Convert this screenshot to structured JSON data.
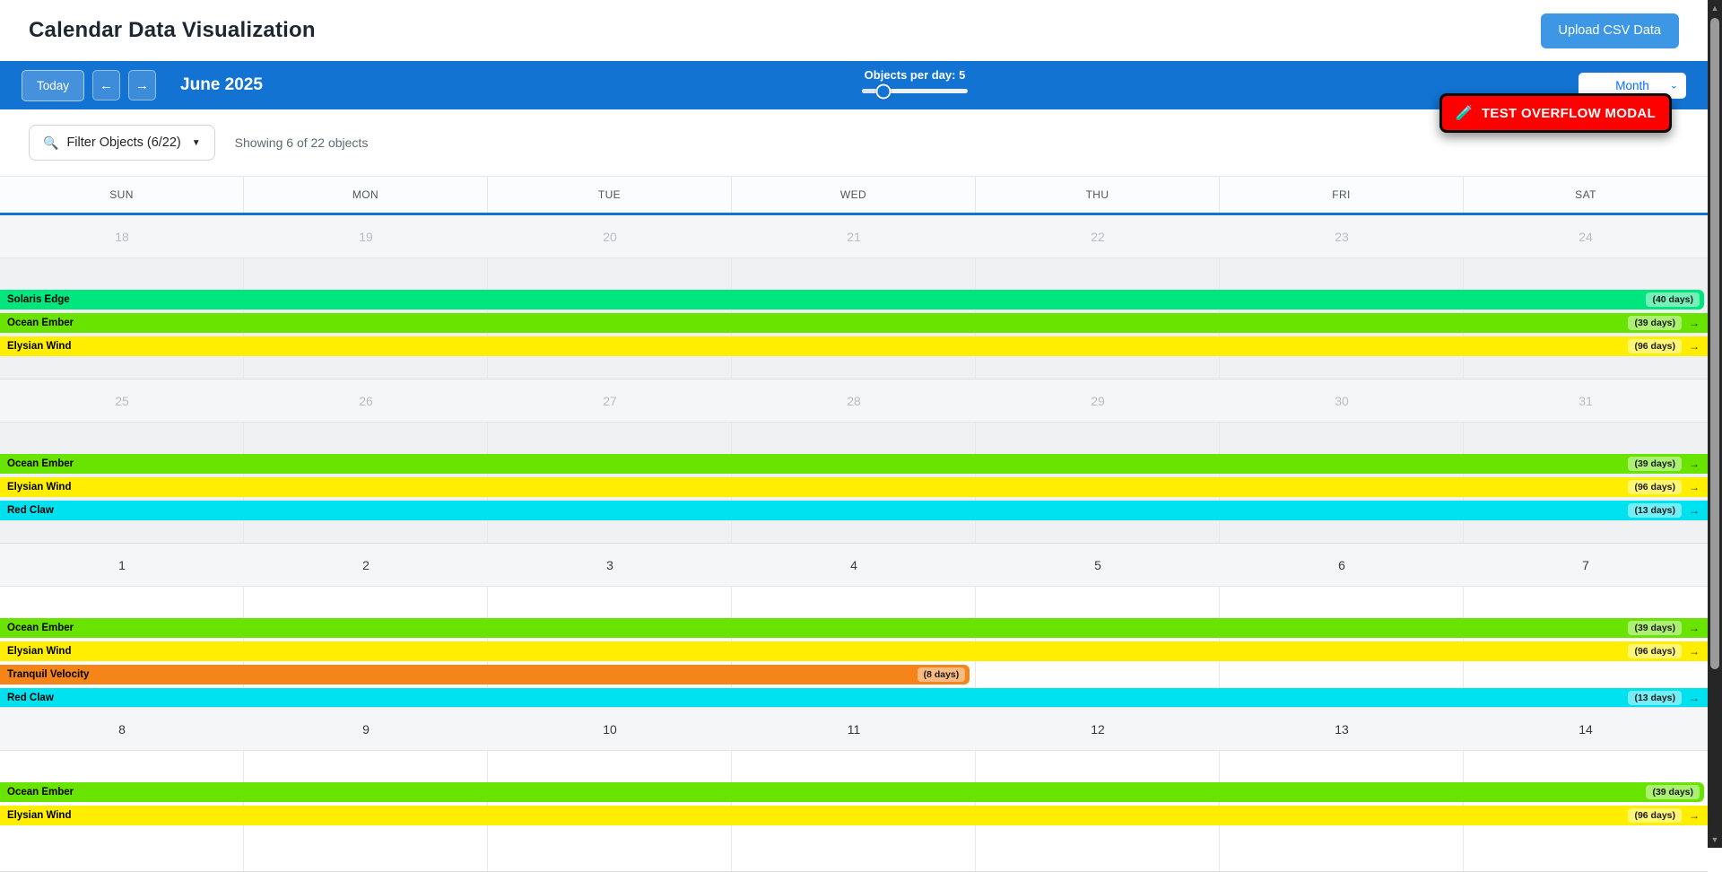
{
  "header": {
    "title": "Calendar Data Visualization",
    "upload_button": "Upload CSV Data"
  },
  "toolbar": {
    "today_button": "Today",
    "prev_icon": "←",
    "next_icon": "→",
    "current_month": "June 2025",
    "slider": {
      "label": "Objects per day: 5",
      "value": 5,
      "percent": 20
    },
    "view_select": {
      "value": "Month",
      "chevron_icon": "⌄"
    },
    "overflow_button": {
      "icon": "🧪",
      "label": "TEST OVERFLOW MODAL"
    }
  },
  "filter_bar": {
    "filter_icon": "🔍",
    "filter_button": "Filter Objects (6/22)",
    "caret_icon": "▼",
    "summary": "Showing 6 of 22 objects"
  },
  "calendar": {
    "day_headers": [
      "SUN",
      "MON",
      "TUE",
      "WED",
      "THU",
      "FRI",
      "SAT"
    ],
    "continue_arrow": "→",
    "weeks": [
      {
        "dates": [
          "18",
          "19",
          "20",
          "21",
          "22",
          "23",
          "24"
        ],
        "other_month": true,
        "events": [
          {
            "name": "Solaris Edge",
            "duration": "(40 days)",
            "color": "#00e67e",
            "continues": false,
            "width_percent": 100
          },
          {
            "name": "Ocean Ember",
            "duration": "(39 days)",
            "color": "#69e300",
            "continues": true,
            "width_percent": 100
          },
          {
            "name": "Elysian Wind",
            "duration": "(96 days)",
            "color": "#ffee00",
            "continues": true,
            "width_percent": 100
          }
        ]
      },
      {
        "dates": [
          "25",
          "26",
          "27",
          "28",
          "29",
          "30",
          "31"
        ],
        "other_month": true,
        "events": [
          {
            "name": "Ocean Ember",
            "duration": "(39 days)",
            "color": "#69e300",
            "continues": true,
            "width_percent": 100
          },
          {
            "name": "Elysian Wind",
            "duration": "(96 days)",
            "color": "#ffee00",
            "continues": true,
            "width_percent": 100
          },
          {
            "name": "Red Claw",
            "duration": "(13 days)",
            "color": "#00e1ef",
            "continues": true,
            "width_percent": 100
          }
        ]
      },
      {
        "dates": [
          "1",
          "2",
          "3",
          "4",
          "5",
          "6",
          "7"
        ],
        "other_month": false,
        "events": [
          {
            "name": "Ocean Ember",
            "duration": "(39 days)",
            "color": "#69e300",
            "continues": true,
            "width_percent": 100
          },
          {
            "name": "Elysian Wind",
            "duration": "(96 days)",
            "color": "#ffee00",
            "continues": true,
            "width_percent": 100
          },
          {
            "name": "Tranquil Velocity",
            "duration": "(8 days)",
            "color": "#f58419",
            "continues": false,
            "width_percent": 57
          },
          {
            "name": "Red Claw",
            "duration": "(13 days)",
            "color": "#00e1ef",
            "continues": true,
            "width_percent": 100
          }
        ]
      },
      {
        "dates": [
          "8",
          "9",
          "10",
          "11",
          "12",
          "13",
          "14"
        ],
        "other_month": false,
        "events": [
          {
            "name": "Ocean Ember",
            "duration": "(39 days)",
            "color": "#69e300",
            "continues": false,
            "width_percent": 100
          },
          {
            "name": "Elysian Wind",
            "duration": "(96 days)",
            "color": "#ffee00",
            "continues": true,
            "width_percent": 100
          }
        ]
      }
    ]
  },
  "scrollbar": {
    "up_icon": "▲",
    "down_icon": "▼"
  },
  "colors": {
    "toolbar_blue": "#1273d2",
    "upload_blue": "#3d97e4",
    "overflow_red": "#fe0000",
    "select_text_blue": "#0d6efd",
    "event_solaris_edge": "#00e67e",
    "event_ocean_ember": "#69e300",
    "event_elysian_wind": "#ffee00",
    "event_tranquil_velocity": "#f58419",
    "event_red_claw": "#00e1ef"
  }
}
